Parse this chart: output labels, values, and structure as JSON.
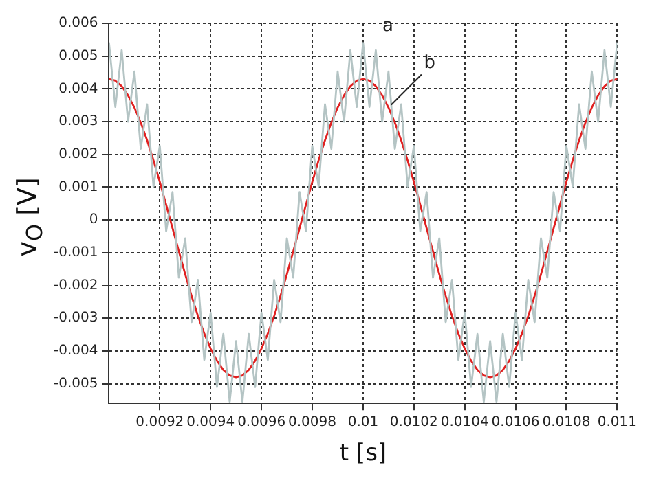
{
  "chart_data": {
    "type": "line",
    "xlabel": "t [s]",
    "ylabel": "v$_{O}$ [V]",
    "xlim": [
      0.009,
      0.011
    ],
    "ylim": [
      -0.0056,
      0.006
    ],
    "xticks": [
      0.0092,
      0.0094,
      0.0096,
      0.0098,
      0.01,
      0.0102,
      0.0104,
      0.0106,
      0.0108,
      0.011
    ],
    "yticks": [
      0.006,
      0.005,
      0.004,
      0.003,
      0.002,
      0.001,
      0,
      -0.001,
      -0.002,
      -0.003,
      -0.004,
      -0.005
    ],
    "grid": true,
    "legend": false,
    "marker": "none",
    "line_style": "solid",
    "x": [
      0.009,
      0.009025,
      0.00905,
      0.009075,
      0.0091,
      0.009125,
      0.00915,
      0.009175,
      0.0092,
      0.009225,
      0.00925,
      0.009275,
      0.0093,
      0.009325,
      0.00935,
      0.009375,
      0.0094,
      0.009425,
      0.00945,
      0.009475,
      0.0095,
      0.009525,
      0.00955,
      0.009575,
      0.0096,
      0.009625,
      0.00965,
      0.009675,
      0.0097,
      0.009725,
      0.00975,
      0.009775,
      0.0098,
      0.009825,
      0.00985,
      0.009875,
      0.0099,
      0.009925,
      0.00995,
      0.009975,
      0.01,
      0.010025,
      0.01005,
      0.010075,
      0.0101,
      0.010125,
      0.01015,
      0.010175,
      0.0102,
      0.010225,
      0.01025,
      0.010275,
      0.0103,
      0.010325,
      0.01035,
      0.010375,
      0.0104,
      0.010425,
      0.01045,
      0.010475,
      0.0105,
      0.010525,
      0.01055,
      0.010575,
      0.0106,
      0.010625,
      0.01065,
      0.010675,
      0.0107,
      0.010725,
      0.01075,
      0.010775,
      0.0108,
      0.010825,
      0.01085,
      0.010875,
      0.0109,
      0.010925,
      0.01095,
      0.010975,
      0.011
    ],
    "series": [
      {
        "color": "#b4c4c4",
        "values": [
          0.0054,
          0.00345,
          0.00518,
          0.003,
          0.00453,
          0.00217,
          0.00353,
          0.00102,
          0.00226,
          -0.00034,
          0.00085,
          -0.00176,
          -0.00056,
          -0.00312,
          -0.00183,
          -0.00427,
          -0.00283,
          -0.0051,
          -0.00348,
          -0.00555,
          -0.0037,
          -0.00555,
          -0.00348,
          -0.0051,
          -0.00283,
          -0.00427,
          -0.00183,
          -0.00312,
          -0.00056,
          -0.00176,
          0.00085,
          -0.00034,
          0.00226,
          0.00102,
          0.00353,
          0.00217,
          0.00453,
          0.003,
          0.00518,
          0.00345,
          0.0054,
          0.00345,
          0.00518,
          0.003,
          0.00453,
          0.00217,
          0.00353,
          0.00102,
          0.00226,
          -0.00034,
          0.00085,
          -0.00176,
          -0.00056,
          -0.00312,
          -0.00183,
          -0.00427,
          -0.00283,
          -0.0051,
          -0.00348,
          -0.00555,
          -0.0037,
          -0.00555,
          -0.00348,
          -0.0051,
          -0.00283,
          -0.00427,
          -0.00183,
          -0.00312,
          -0.00056,
          -0.00176,
          0.00085,
          -0.00034,
          0.00226,
          0.00102,
          0.00353,
          0.00217,
          0.00453,
          0.003,
          0.00518,
          0.00345,
          0.0054
        ]
      },
      {
        "color": "#e02020",
        "values": [
          0.0043,
          0.00425,
          0.00408,
          0.0038,
          0.00343,
          0.00297,
          0.00243,
          0.00182,
          0.00116,
          0.00046,
          -0.00025,
          -0.00096,
          -0.00166,
          -0.00232,
          -0.00293,
          -0.00347,
          -0.00393,
          -0.0043,
          -0.00458,
          -0.00475,
          -0.0048,
          -0.00475,
          -0.00458,
          -0.0043,
          -0.00393,
          -0.00347,
          -0.00293,
          -0.00232,
          -0.00166,
          -0.00096,
          -0.00025,
          0.00046,
          0.00116,
          0.00182,
          0.00243,
          0.00297,
          0.00343,
          0.0038,
          0.00408,
          0.00425,
          0.0043,
          0.00425,
          0.00408,
          0.0038,
          0.00343,
          0.00297,
          0.00243,
          0.00182,
          0.00116,
          0.00046,
          -0.00025,
          -0.00096,
          -0.00166,
          -0.00232,
          -0.00293,
          -0.00347,
          -0.00393,
          -0.0043,
          -0.00458,
          -0.00475,
          -0.0048,
          -0.00475,
          -0.00458,
          -0.0043,
          -0.00393,
          -0.00347,
          -0.00293,
          -0.00232,
          -0.00166,
          -0.00096,
          -0.00025,
          0.00046,
          0.00116,
          0.00182,
          0.00243,
          0.00297,
          0.00343,
          0.0038,
          0.00408,
          0.00425,
          0.0043
        ]
      }
    ],
    "annotations": [
      {
        "text": "a",
        "x": 0.01,
        "y": 0.0054
      },
      {
        "text": "b",
        "x": 0.0101,
        "y": 0.00343
      }
    ]
  }
}
